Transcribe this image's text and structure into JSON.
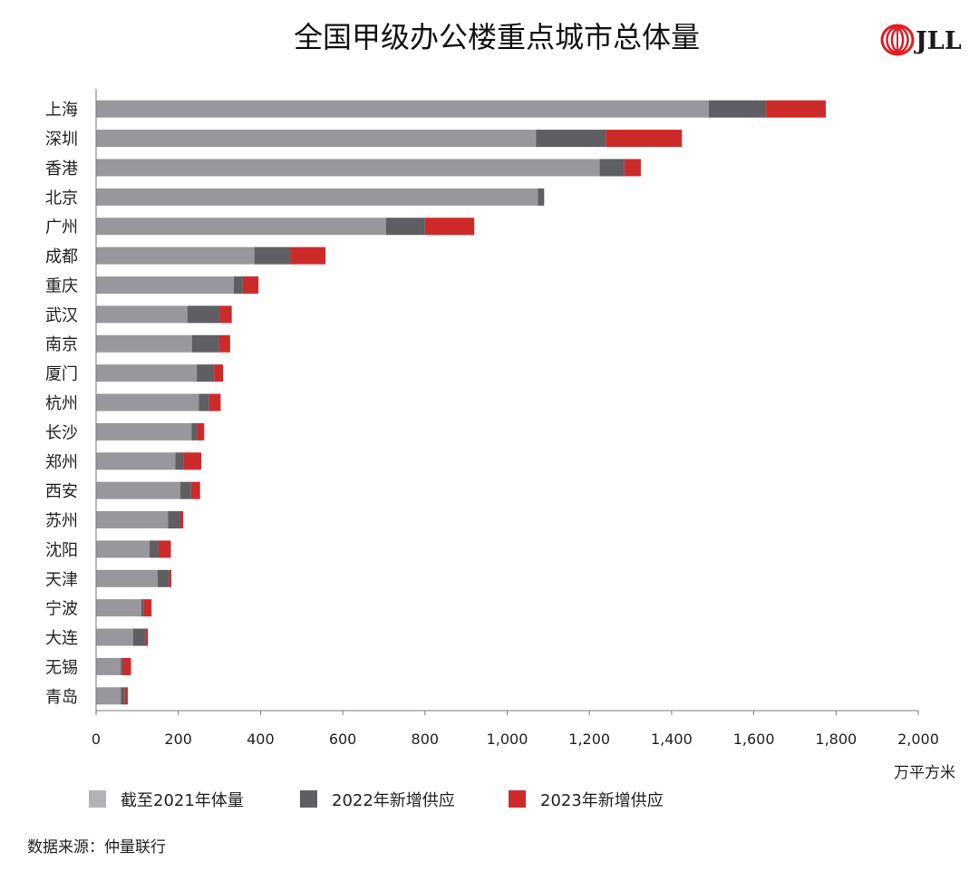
{
  "colors": {
    "base": "#98979c",
    "added_2022": "#5f5e63",
    "added_2023": "#cd2a2a",
    "legend_base": "#b3b2b6",
    "axis": "#7a7a7a",
    "logo": "#e31b23"
  },
  "logo": {
    "text": "JLL",
    "icon": "jll-rings-icon"
  },
  "source": "数据来源：仲量联行",
  "chart_data": {
    "type": "bar",
    "orientation": "horizontal",
    "stacked": true,
    "title": "全国甲级办公楼重点城市总体量",
    "xlabel": "万平方米",
    "ylabel": "",
    "xlim": [
      0,
      2000
    ],
    "xticks": [
      0,
      200,
      400,
      600,
      800,
      1000,
      1200,
      1400,
      1600,
      1800,
      2000
    ],
    "xtick_labels": [
      "0",
      "200",
      "400",
      "600",
      "800",
      "1,000",
      "1,200",
      "1,400",
      "1,600",
      "1,800",
      "2,000"
    ],
    "grid": false,
    "legend_position": "bottom-left",
    "categories": [
      "上海",
      "深圳",
      "香港",
      "北京",
      "广州",
      "成都",
      "重庆",
      "武汉",
      "南京",
      "厦门",
      "杭州",
      "长沙",
      "郑州",
      "西安",
      "苏州",
      "沈阳",
      "天津",
      "宁波",
      "大连",
      "无锡",
      "青岛"
    ],
    "series": [
      {
        "name": "截至2021年体量",
        "values": [
          1490,
          1070,
          1225,
          1075,
          705,
          385,
          335,
          222,
          233,
          245,
          250,
          232,
          193,
          205,
          175,
          130,
          150,
          110,
          90,
          60,
          60
        ]
      },
      {
        "name": "2022年新增供应",
        "values": [
          140,
          170,
          60,
          15,
          95,
          88,
          22,
          78,
          66,
          42,
          25,
          13,
          20,
          26,
          30,
          22,
          28,
          5,
          30,
          5,
          10
        ]
      },
      {
        "name": "2023年新增供应",
        "values": [
          145,
          185,
          40,
          0,
          120,
          85,
          38,
          30,
          27,
          22,
          28,
          18,
          43,
          22,
          7,
          30,
          5,
          20,
          6,
          20,
          7
        ]
      }
    ]
  }
}
